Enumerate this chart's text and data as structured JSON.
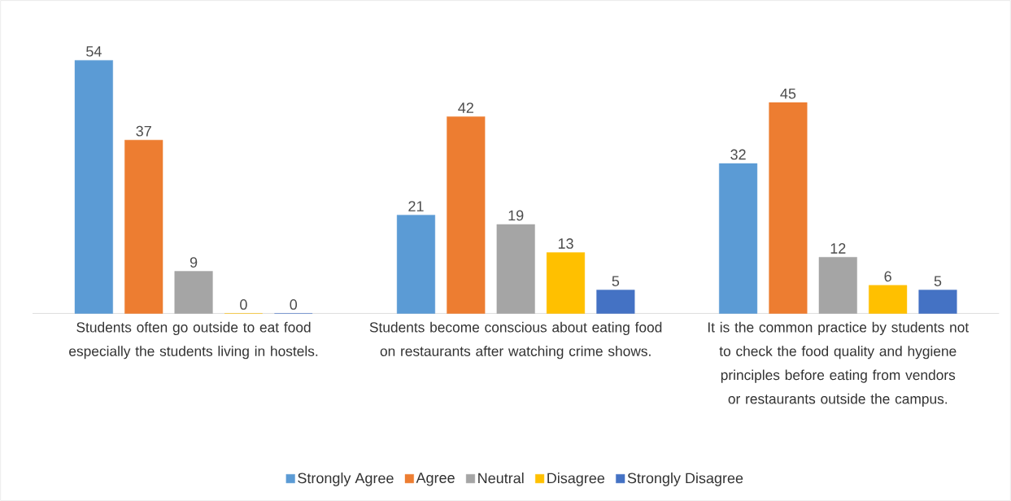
{
  "chart_data": {
    "type": "bar",
    "categories": [
      "Students often go outside to eat food especially the students living in hostels.",
      "Students become conscious about eating food on restaurants after watching crime shows.",
      "It is the common practice by students not to check the food quality and hygiene principles before eating from vendors or restaurants outside the campus."
    ],
    "series": [
      {
        "name": "Strongly Agree",
        "color": "#5b9bd5",
        "values": [
          54,
          21,
          32
        ]
      },
      {
        "name": "Agree",
        "color": "#ed7d31",
        "values": [
          37,
          42,
          45
        ]
      },
      {
        "name": "Neutral",
        "color": "#a5a5a5",
        "values": [
          9,
          19,
          12
        ]
      },
      {
        "name": "Disagree",
        "color": "#ffc000",
        "values": [
          0,
          13,
          6
        ]
      },
      {
        "name": "Strongly Disagree",
        "color": "#4472c4",
        "values": [
          0,
          5,
          5
        ]
      }
    ],
    "data_labels": true,
    "legend": "bottom"
  }
}
